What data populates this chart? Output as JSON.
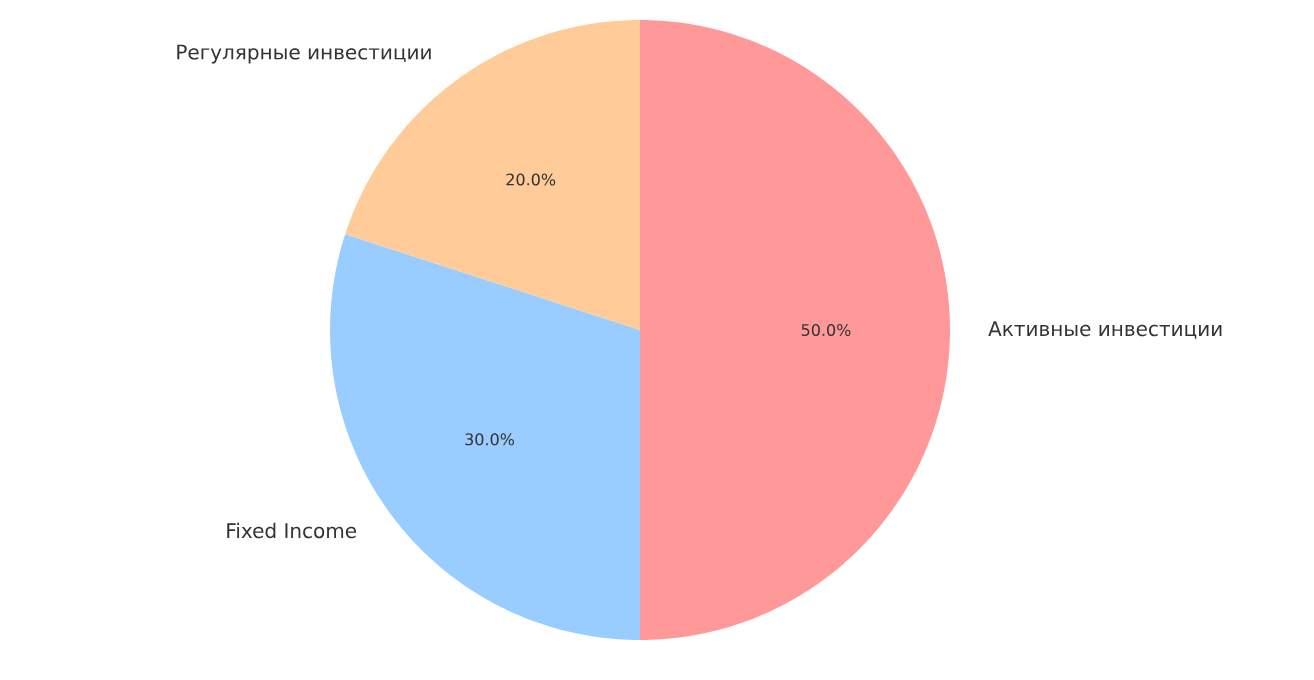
{
  "chart_data": {
    "type": "pie",
    "categories": [
      "Активные инвестиции",
      "Fixed Income",
      "Регулярные инвестиции"
    ],
    "values": [
      50,
      30,
      20
    ],
    "colors": [
      "#ff9999",
      "#99ccff",
      "#ffcc99"
    ],
    "value_labels": [
      "50.0%",
      "30.0%",
      "20.0%"
    ]
  }
}
